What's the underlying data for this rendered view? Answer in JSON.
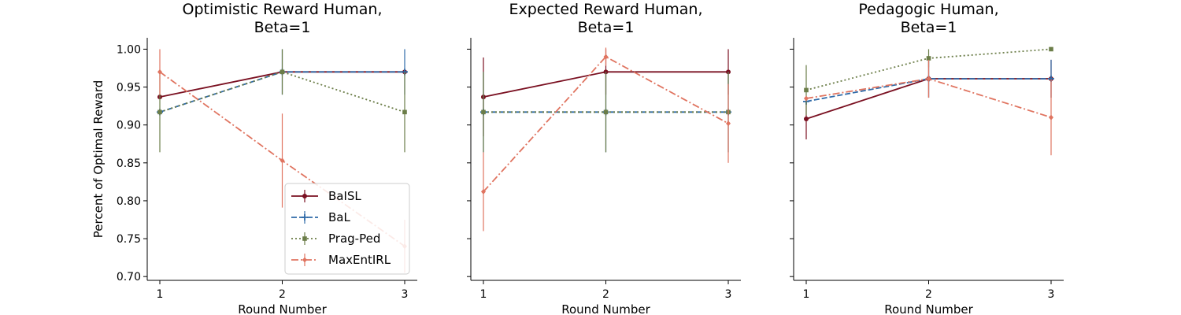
{
  "ylabel": "Percent of Optimal Reward",
  "legend": {
    "position": "lower-right of first panel",
    "entries": [
      {
        "name": "BaISL"
      },
      {
        "name": "BaL"
      },
      {
        "name": "Prag-Ped"
      },
      {
        "name": "MaxEntIRL"
      }
    ]
  },
  "series_styles": [
    {
      "name": "BaISL",
      "color": "#7a1021",
      "dash": "solid",
      "marker": "circle"
    },
    {
      "name": "BaL",
      "color": "#2f6aa8",
      "dash": "dashed",
      "marker": "plus"
    },
    {
      "name": "Prag-Ped",
      "color": "#6b7d48",
      "dash": "dotted",
      "marker": "square"
    },
    {
      "name": "MaxEntIRL",
      "color": "#e07460",
      "dash": "dashdot",
      "marker": "diamond"
    }
  ],
  "chart_data": [
    {
      "type": "line",
      "title_line1": "Optimistic Reward Human,",
      "title_line2": "Beta=1",
      "xlabel": "Round Number",
      "x": [
        1,
        2,
        3
      ],
      "ylim": [
        0.695,
        1.015
      ],
      "yticks": [
        "0.70",
        "0.75",
        "0.80",
        "0.85",
        "0.90",
        "0.95",
        "1.00"
      ],
      "xticks": [
        "1",
        "2",
        "3"
      ],
      "show_yticklabels": true,
      "series": [
        {
          "name": "BaISL",
          "values": [
            0.937,
            0.97,
            0.97
          ],
          "err": [
            0.0,
            0.0,
            0.0
          ]
        },
        {
          "name": "BaL",
          "values": [
            0.917,
            0.97,
            0.97
          ],
          "err": [
            0.0,
            0.03,
            0.03
          ]
        },
        {
          "name": "Prag-Ped",
          "values": [
            0.917,
            0.97,
            0.917
          ],
          "err": [
            0.053,
            0.03,
            0.053
          ]
        },
        {
          "name": "MaxEntIRL",
          "values": [
            0.97,
            0.853,
            0.74
          ],
          "err": [
            0.03,
            0.062,
            0.035
          ]
        }
      ]
    },
    {
      "type": "line",
      "title_line1": "Expected Reward Human,",
      "title_line2": "Beta=1",
      "xlabel": "Round Number",
      "x": [
        1,
        2,
        3
      ],
      "ylim": [
        0.695,
        1.015
      ],
      "yticks": [
        "0.70",
        "0.75",
        "0.80",
        "0.85",
        "0.90",
        "0.95",
        "1.00"
      ],
      "xticks": [
        "1",
        "2",
        "3"
      ],
      "show_yticklabels": false,
      "series": [
        {
          "name": "BaISL",
          "values": [
            0.937,
            0.97,
            0.97
          ],
          "err": [
            0.052,
            0.03,
            0.03
          ]
        },
        {
          "name": "BaL",
          "values": [
            0.917,
            0.917,
            0.917
          ],
          "err": [
            0.053,
            0.053,
            0.053
          ]
        },
        {
          "name": "Prag-Ped",
          "values": [
            0.917,
            0.917,
            0.917
          ],
          "err": [
            0.053,
            0.053,
            0.053
          ]
        },
        {
          "name": "MaxEntIRL",
          "values": [
            0.812,
            0.99,
            0.902
          ],
          "err": [
            0.052,
            0.012,
            0.052
          ]
        }
      ]
    },
    {
      "type": "line",
      "title_line1": "Pedagogic Human,",
      "title_line2": "Beta=1",
      "xlabel": "Round Number",
      "x": [
        1,
        2,
        3
      ],
      "ylim": [
        0.695,
        1.015
      ],
      "yticks": [
        "0.70",
        "0.75",
        "0.80",
        "0.85",
        "0.90",
        "0.95",
        "1.00"
      ],
      "xticks": [
        "1",
        "2",
        "3"
      ],
      "show_yticklabels": false,
      "series": [
        {
          "name": "BaISL",
          "values": [
            0.908,
            0.961,
            0.961
          ],
          "err": [
            0.027,
            0.025,
            0.025
          ]
        },
        {
          "name": "BaL",
          "values": [
            0.931,
            0.961,
            0.961
          ],
          "err": [
            0.0,
            0.025,
            0.025
          ]
        },
        {
          "name": "Prag-Ped",
          "values": [
            0.946,
            0.988,
            1.0
          ],
          "err": [
            0.033,
            0.012,
            0.0
          ]
        },
        {
          "name": "MaxEntIRL",
          "values": [
            0.935,
            0.961,
            0.91
          ],
          "err": [
            0.0,
            0.025,
            0.05
          ]
        }
      ]
    }
  ]
}
